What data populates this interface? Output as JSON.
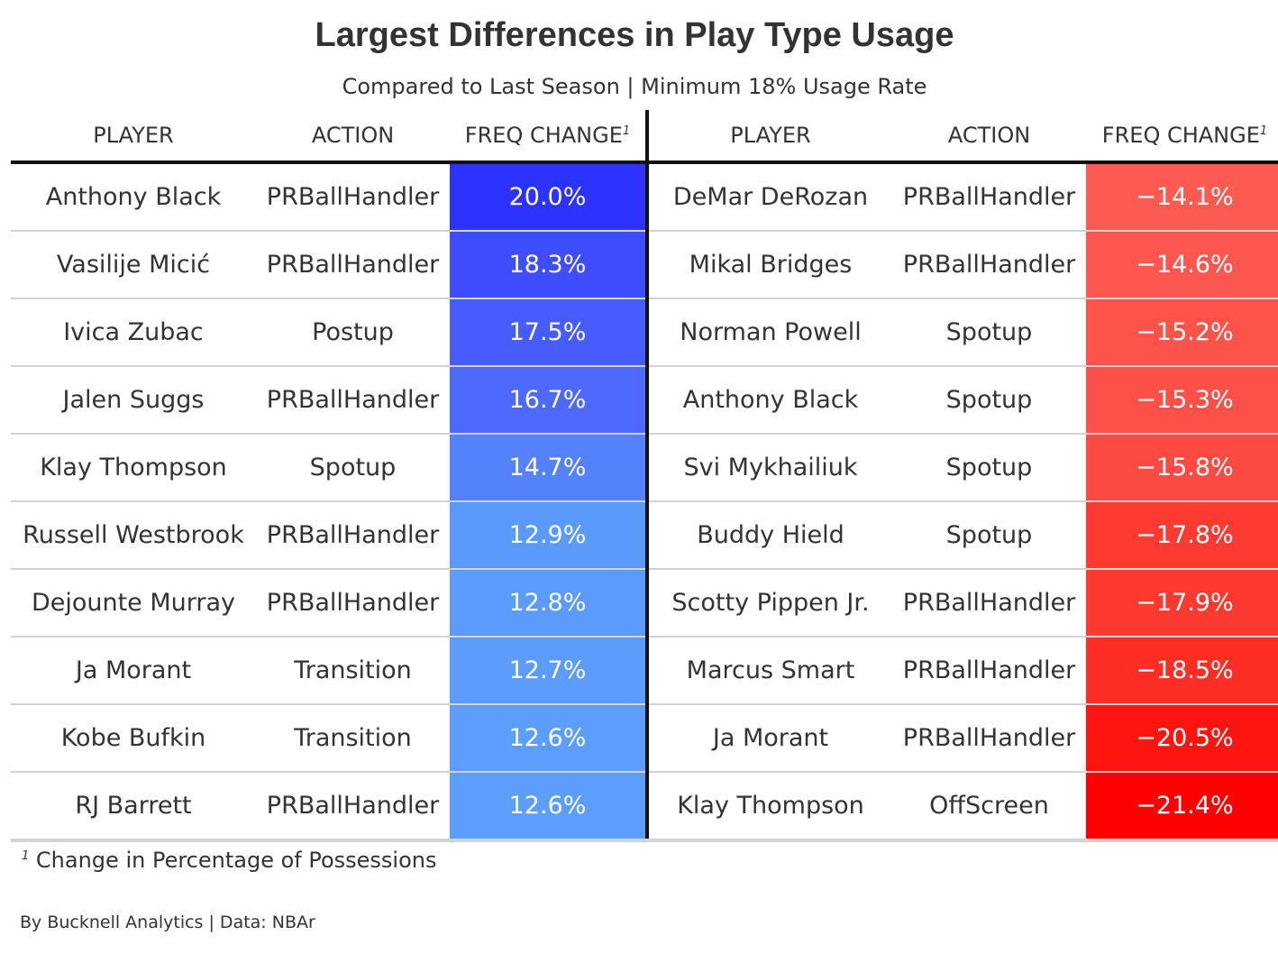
{
  "title": "Largest Differences in Play Type Usage",
  "subtitle": "Compared to Last Season | Minimum 18% Usage Rate",
  "headers": {
    "player": "PLAYER",
    "action": "ACTION",
    "freq_change": "FREQ CHANGE",
    "footnote_marker": "1"
  },
  "left_rows": [
    {
      "player": "Anthony Black",
      "action": "PRBallHandler",
      "change": "20.0%",
      "color": "#2c32ff"
    },
    {
      "player": "Vasilije Micić",
      "action": "PRBallHandler",
      "change": "18.3%",
      "color": "#3e4eff"
    },
    {
      "player": "Ivica Zubac",
      "action": "Postup",
      "change": "17.5%",
      "color": "#465cff"
    },
    {
      "player": "Jalen Suggs",
      "action": "PRBallHandler",
      "change": "16.7%",
      "color": "#4d69fe"
    },
    {
      "player": "Klay Thompson",
      "action": "Spotup",
      "change": "14.7%",
      "color": "#5482fd"
    },
    {
      "player": "Russell Westbrook",
      "action": "PRBallHandler",
      "change": "12.9%",
      "color": "#5a9afd"
    },
    {
      "player": "Dejounte Murray",
      "action": "PRBallHandler",
      "change": "12.8%",
      "color": "#5b9bfd"
    },
    {
      "player": "Ja Morant",
      "action": "Transition",
      "change": "12.7%",
      "color": "#5b9cfd"
    },
    {
      "player": "Kobe Bufkin",
      "action": "Transition",
      "change": "12.6%",
      "color": "#5c9efd"
    },
    {
      "player": "RJ Barrett",
      "action": "PRBallHandler",
      "change": "12.6%",
      "color": "#5c9efd"
    }
  ],
  "right_rows": [
    {
      "player": "DeMar DeRozan",
      "action": "PRBallHandler",
      "change": "−14.1%",
      "color": "#fd5a52"
    },
    {
      "player": "Mikal Bridges",
      "action": "PRBallHandler",
      "change": "−14.6%",
      "color": "#fd5750"
    },
    {
      "player": "Norman Powell",
      "action": "Spotup",
      "change": "−15.2%",
      "color": "#fd534b"
    },
    {
      "player": "Anthony Black",
      "action": "Spotup",
      "change": "−15.3%",
      "color": "#fd5049"
    },
    {
      "player": "Svi Mykhailiuk",
      "action": "Spotup",
      "change": "−15.8%",
      "color": "#fd4a42"
    },
    {
      "player": "Buddy Hield",
      "action": "Spotup",
      "change": "−17.8%",
      "color": "#fe3a31"
    },
    {
      "player": "Scotty Pippen Jr.",
      "action": "PRBallHandler",
      "change": "−17.9%",
      "color": "#fe392f"
    },
    {
      "player": "Marcus Smart",
      "action": "PRBallHandler",
      "change": "−18.5%",
      "color": "#fe2e25"
    },
    {
      "player": "Ja Morant",
      "action": "PRBallHandler",
      "change": "−20.5%",
      "color": "#ff1510"
    },
    {
      "player": "Klay Thompson",
      "action": "OffScreen",
      "change": "−21.4%",
      "color": "#ff0000"
    }
  ],
  "footnote": {
    "marker": "1",
    "text": "Change in Percentage of Possessions"
  },
  "credit": "By Bucknell Analytics | Data: NBAr"
}
